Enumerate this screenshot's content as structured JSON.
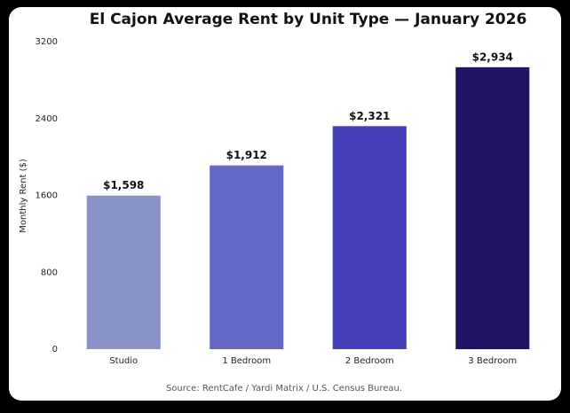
{
  "chart_data": {
    "type": "bar",
    "title": "El Cajon Average Rent by Unit Type — January 2026",
    "y_label": "Monthly Rent ($)",
    "categories": [
      "Studio",
      "1 Bedroom",
      "2 Bedroom",
      "3 Bedroom"
    ],
    "values": [
      1598,
      1912,
      2321,
      2934
    ],
    "value_labels": [
      "$1,598",
      "$1,912",
      "$2,321",
      "$2,934"
    ],
    "colors": [
      "#8a93c8",
      "#6468c4",
      "#4540b8",
      "#241466"
    ],
    "ylim": [
      0,
      3200
    ],
    "yticks": [
      0,
      800,
      1600,
      2400,
      3200
    ],
    "grid": false,
    "source": "Source: RentCafe / Yardi Matrix / U.S. Census Bureau."
  }
}
